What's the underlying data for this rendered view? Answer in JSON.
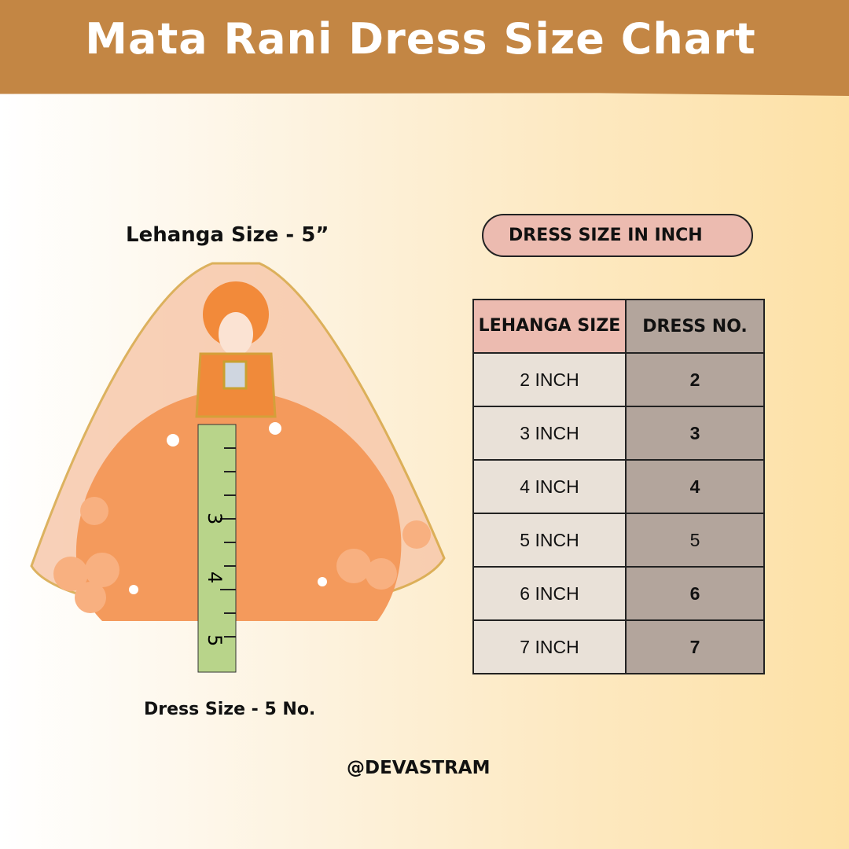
{
  "title": "Mata Rani Dress Size Chart",
  "photo": {
    "caption_top": "Lehanga Size - 5”",
    "caption_bottom": "Dress Size - 5 No.",
    "ruler_marks": [
      "3",
      "4",
      "5"
    ]
  },
  "size_chart": {
    "heading": "DRESS SIZE IN INCH",
    "columns": [
      "LEHANGA SIZE",
      "DRESS NO."
    ],
    "rows": [
      {
        "lehanga": "2 INCH",
        "dress": "2"
      },
      {
        "lehanga": "3 INCH",
        "dress": "3"
      },
      {
        "lehanga": "4 INCH",
        "dress": "4"
      },
      {
        "lehanga": "5 INCH",
        "dress": "5"
      },
      {
        "lehanga": "6 INCH",
        "dress": "6"
      },
      {
        "lehanga": "7 INCH",
        "dress": "7"
      }
    ]
  },
  "handle": "@DEVASTRAM",
  "colors": {
    "banner": "#c38644",
    "header_pink": "#ecbbb0",
    "dress_col": "#b3a59c",
    "size_col": "#e9e1d8"
  }
}
